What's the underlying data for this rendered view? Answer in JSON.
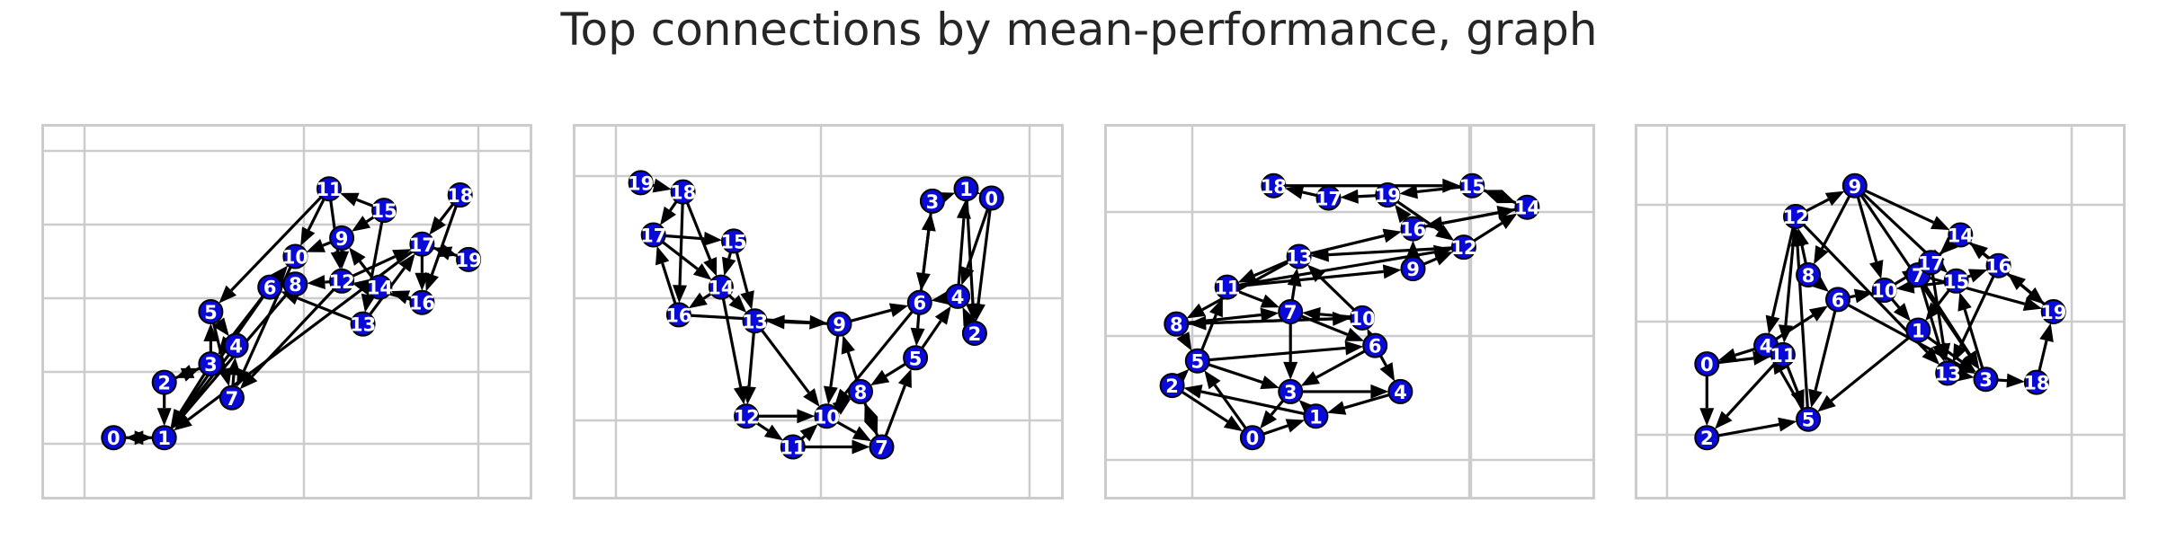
{
  "title": "Top connections by mean-performance, graph",
  "colors": {
    "node_fill": "#0a0ad8",
    "edge": "#000000",
    "label": "#ffffff",
    "grid": "#cccccc"
  },
  "chart_data": [
    {
      "type": "network",
      "nodes": [
        {
          "id": "0",
          "x": 0.09,
          "y": 0.09
        },
        {
          "id": "1",
          "x": 0.21,
          "y": 0.09
        },
        {
          "id": "2",
          "x": 0.21,
          "y": 0.27
        },
        {
          "id": "3",
          "x": 0.32,
          "y": 0.33
        },
        {
          "id": "4",
          "x": 0.38,
          "y": 0.39
        },
        {
          "id": "5",
          "x": 0.32,
          "y": 0.5
        },
        {
          "id": "6",
          "x": 0.46,
          "y": 0.58
        },
        {
          "id": "7",
          "x": 0.37,
          "y": 0.22
        },
        {
          "id": "8",
          "x": 0.52,
          "y": 0.59
        },
        {
          "id": "9",
          "x": 0.63,
          "y": 0.74
        },
        {
          "id": "10",
          "x": 0.52,
          "y": 0.68
        },
        {
          "id": "11",
          "x": 0.6,
          "y": 0.9
        },
        {
          "id": "12",
          "x": 0.63,
          "y": 0.6
        },
        {
          "id": "13",
          "x": 0.68,
          "y": 0.46
        },
        {
          "id": "14",
          "x": 0.72,
          "y": 0.58
        },
        {
          "id": "15",
          "x": 0.73,
          "y": 0.83
        },
        {
          "id": "16",
          "x": 0.82,
          "y": 0.53
        },
        {
          "id": "17",
          "x": 0.82,
          "y": 0.72
        },
        {
          "id": "18",
          "x": 0.91,
          "y": 0.88
        },
        {
          "id": "19",
          "x": 0.93,
          "y": 0.67
        }
      ],
      "edges": [
        [
          "0",
          "1"
        ],
        [
          "1",
          "0"
        ],
        [
          "2",
          "1"
        ],
        [
          "3",
          "2"
        ],
        [
          "4",
          "1"
        ],
        [
          "5",
          "7"
        ],
        [
          "6",
          "3"
        ],
        [
          "7",
          "4"
        ],
        [
          "5",
          "4"
        ],
        [
          "3",
          "5"
        ],
        [
          "2",
          "3"
        ],
        [
          "6",
          "10"
        ],
        [
          "8",
          "6"
        ],
        [
          "11",
          "5"
        ],
        [
          "9",
          "12"
        ],
        [
          "10",
          "7"
        ],
        [
          "12",
          "8"
        ],
        [
          "13",
          "6"
        ],
        [
          "14",
          "12"
        ],
        [
          "15",
          "11"
        ],
        [
          "16",
          "12"
        ],
        [
          "17",
          "19"
        ],
        [
          "18",
          "17"
        ],
        [
          "19",
          "17"
        ],
        [
          "13",
          "17"
        ],
        [
          "9",
          "10"
        ],
        [
          "17",
          "16"
        ],
        [
          "15",
          "13"
        ],
        [
          "11",
          "12"
        ],
        [
          "8",
          "1"
        ],
        [
          "12",
          "7"
        ],
        [
          "6",
          "1"
        ],
        [
          "18",
          "16"
        ],
        [
          "14",
          "9"
        ],
        [
          "17",
          "1"
        ],
        [
          "3",
          "1"
        ],
        [
          "15",
          "9"
        ],
        [
          "16",
          "14"
        ],
        [
          "11",
          "10"
        ],
        [
          "12",
          "17"
        ]
      ]
    },
    {
      "type": "network",
      "nodes": [
        {
          "id": "0",
          "x": 0.91,
          "y": 0.87
        },
        {
          "id": "1",
          "x": 0.85,
          "y": 0.9
        },
        {
          "id": "2",
          "x": 0.87,
          "y": 0.43
        },
        {
          "id": "3",
          "x": 0.77,
          "y": 0.86
        },
        {
          "id": "4",
          "x": 0.83,
          "y": 0.55
        },
        {
          "id": "5",
          "x": 0.73,
          "y": 0.35
        },
        {
          "id": "6",
          "x": 0.74,
          "y": 0.53
        },
        {
          "id": "7",
          "x": 0.65,
          "y": 0.06
        },
        {
          "id": "8",
          "x": 0.6,
          "y": 0.24
        },
        {
          "id": "9",
          "x": 0.55,
          "y": 0.46
        },
        {
          "id": "10",
          "x": 0.52,
          "y": 0.16
        },
        {
          "id": "11",
          "x": 0.44,
          "y": 0.06
        },
        {
          "id": "12",
          "x": 0.33,
          "y": 0.16
        },
        {
          "id": "13",
          "x": 0.35,
          "y": 0.47
        },
        {
          "id": "14",
          "x": 0.27,
          "y": 0.58
        },
        {
          "id": "15",
          "x": 0.3,
          "y": 0.73
        },
        {
          "id": "16",
          "x": 0.17,
          "y": 0.49
        },
        {
          "id": "17",
          "x": 0.11,
          "y": 0.75
        },
        {
          "id": "18",
          "x": 0.18,
          "y": 0.89
        },
        {
          "id": "19",
          "x": 0.08,
          "y": 0.92
        }
      ],
      "edges": [
        [
          "19",
          "18"
        ],
        [
          "18",
          "17"
        ],
        [
          "17",
          "15"
        ],
        [
          "15",
          "14"
        ],
        [
          "14",
          "16"
        ],
        [
          "16",
          "17"
        ],
        [
          "18",
          "16"
        ],
        [
          "15",
          "13"
        ],
        [
          "13",
          "12"
        ],
        [
          "12",
          "11"
        ],
        [
          "11",
          "10"
        ],
        [
          "10",
          "7"
        ],
        [
          "7",
          "8"
        ],
        [
          "8",
          "9"
        ],
        [
          "9",
          "13"
        ],
        [
          "14",
          "13"
        ],
        [
          "16",
          "9"
        ],
        [
          "13",
          "10"
        ],
        [
          "9",
          "10"
        ],
        [
          "9",
          "6"
        ],
        [
          "6",
          "5"
        ],
        [
          "5",
          "4"
        ],
        [
          "4",
          "6"
        ],
        [
          "6",
          "3"
        ],
        [
          "3",
          "1"
        ],
        [
          "1",
          "0"
        ],
        [
          "0",
          "2"
        ],
        [
          "2",
          "4"
        ],
        [
          "4",
          "1"
        ],
        [
          "3",
          "6"
        ],
        [
          "5",
          "8"
        ],
        [
          "8",
          "7"
        ],
        [
          "7",
          "5"
        ],
        [
          "10",
          "8"
        ],
        [
          "12",
          "10"
        ],
        [
          "11",
          "7"
        ],
        [
          "18",
          "14"
        ],
        [
          "17",
          "14"
        ],
        [
          "1",
          "2"
        ],
        [
          "6",
          "10"
        ],
        [
          "14",
          "12"
        ],
        [
          "0",
          "4"
        ]
      ]
    },
    {
      "type": "network",
      "nodes": [
        {
          "id": "0",
          "x": 0.27,
          "y": 0.09
        },
        {
          "id": "1",
          "x": 0.42,
          "y": 0.16
        },
        {
          "id": "2",
          "x": 0.08,
          "y": 0.26
        },
        {
          "id": "3",
          "x": 0.36,
          "y": 0.24
        },
        {
          "id": "4",
          "x": 0.62,
          "y": 0.24
        },
        {
          "id": "5",
          "x": 0.14,
          "y": 0.34
        },
        {
          "id": "6",
          "x": 0.56,
          "y": 0.39
        },
        {
          "id": "7",
          "x": 0.36,
          "y": 0.5
        },
        {
          "id": "8",
          "x": 0.09,
          "y": 0.46
        },
        {
          "id": "9",
          "x": 0.65,
          "y": 0.64
        },
        {
          "id": "10",
          "x": 0.53,
          "y": 0.48
        },
        {
          "id": "11",
          "x": 0.21,
          "y": 0.58
        },
        {
          "id": "12",
          "x": 0.77,
          "y": 0.71
        },
        {
          "id": "13",
          "x": 0.38,
          "y": 0.68
        },
        {
          "id": "14",
          "x": 0.92,
          "y": 0.84
        },
        {
          "id": "15",
          "x": 0.79,
          "y": 0.91
        },
        {
          "id": "16",
          "x": 0.65,
          "y": 0.77
        },
        {
          "id": "17",
          "x": 0.45,
          "y": 0.87
        },
        {
          "id": "18",
          "x": 0.32,
          "y": 0.91
        },
        {
          "id": "19",
          "x": 0.59,
          "y": 0.88
        }
      ],
      "edges": [
        [
          "0",
          "1"
        ],
        [
          "1",
          "3"
        ],
        [
          "3",
          "0"
        ],
        [
          "2",
          "5"
        ],
        [
          "5",
          "3"
        ],
        [
          "3",
          "4"
        ],
        [
          "4",
          "1"
        ],
        [
          "5",
          "6"
        ],
        [
          "6",
          "3"
        ],
        [
          "8",
          "7"
        ],
        [
          "7",
          "6"
        ],
        [
          "6",
          "10"
        ],
        [
          "10",
          "8"
        ],
        [
          "11",
          "7"
        ],
        [
          "7",
          "13"
        ],
        [
          "13",
          "11"
        ],
        [
          "11",
          "9"
        ],
        [
          "9",
          "12"
        ],
        [
          "12",
          "13"
        ],
        [
          "13",
          "16"
        ],
        [
          "16",
          "14"
        ],
        [
          "14",
          "15"
        ],
        [
          "15",
          "19"
        ],
        [
          "19",
          "17"
        ],
        [
          "17",
          "18"
        ],
        [
          "18",
          "15"
        ],
        [
          "15",
          "14"
        ],
        [
          "16",
          "19"
        ],
        [
          "12",
          "14"
        ],
        [
          "13",
          "8"
        ],
        [
          "11",
          "12"
        ],
        [
          "8",
          "10"
        ],
        [
          "2",
          "0"
        ],
        [
          "0",
          "5"
        ],
        [
          "1",
          "2"
        ],
        [
          "6",
          "4"
        ],
        [
          "10",
          "13"
        ],
        [
          "9",
          "16"
        ],
        [
          "5",
          "11"
        ],
        [
          "19",
          "12"
        ],
        [
          "7",
          "3"
        ],
        [
          "14",
          "16"
        ],
        [
          "8",
          "5"
        ],
        [
          "10",
          "7"
        ]
      ]
    },
    {
      "type": "network",
      "nodes": [
        {
          "id": "0",
          "x": 0.09,
          "y": 0.33
        },
        {
          "id": "1",
          "x": 0.59,
          "y": 0.44
        },
        {
          "id": "2",
          "x": 0.09,
          "y": 0.09
        },
        {
          "id": "3",
          "x": 0.75,
          "y": 0.28
        },
        {
          "id": "4",
          "x": 0.23,
          "y": 0.39
        },
        {
          "id": "5",
          "x": 0.33,
          "y": 0.15
        },
        {
          "id": "6",
          "x": 0.4,
          "y": 0.54
        },
        {
          "id": "7",
          "x": 0.59,
          "y": 0.62
        },
        {
          "id": "8",
          "x": 0.33,
          "y": 0.62
        },
        {
          "id": "9",
          "x": 0.44,
          "y": 0.91
        },
        {
          "id": "10",
          "x": 0.51,
          "y": 0.57
        },
        {
          "id": "11",
          "x": 0.27,
          "y": 0.36
        },
        {
          "id": "12",
          "x": 0.3,
          "y": 0.81
        },
        {
          "id": "13",
          "x": 0.66,
          "y": 0.3
        },
        {
          "id": "14",
          "x": 0.69,
          "y": 0.75
        },
        {
          "id": "15",
          "x": 0.68,
          "y": 0.6
        },
        {
          "id": "16",
          "x": 0.78,
          "y": 0.65
        },
        {
          "id": "17",
          "x": 0.62,
          "y": 0.66
        },
        {
          "id": "18",
          "x": 0.87,
          "y": 0.27
        },
        {
          "id": "19",
          "x": 0.91,
          "y": 0.5
        }
      ],
      "edges": [
        [
          "0",
          "2"
        ],
        [
          "2",
          "5"
        ],
        [
          "5",
          "12"
        ],
        [
          "12",
          "9"
        ],
        [
          "9",
          "10"
        ],
        [
          "10",
          "1"
        ],
        [
          "1",
          "3"
        ],
        [
          "3",
          "18"
        ],
        [
          "18",
          "19"
        ],
        [
          "19",
          "16"
        ],
        [
          "16",
          "14"
        ],
        [
          "14",
          "17"
        ],
        [
          "17",
          "13"
        ],
        [
          "13",
          "3"
        ],
        [
          "3",
          "15"
        ],
        [
          "15",
          "16"
        ],
        [
          "16",
          "13"
        ],
        [
          "14",
          "7"
        ],
        [
          "7",
          "13"
        ],
        [
          "1",
          "5"
        ],
        [
          "5",
          "4"
        ],
        [
          "4",
          "6"
        ],
        [
          "6",
          "10"
        ],
        [
          "11",
          "2"
        ],
        [
          "12",
          "11"
        ],
        [
          "11",
          "5"
        ],
        [
          "4",
          "0"
        ],
        [
          "0",
          "11"
        ],
        [
          "8",
          "6"
        ],
        [
          "6",
          "5"
        ],
        [
          "12",
          "4"
        ],
        [
          "8",
          "12"
        ],
        [
          "9",
          "14"
        ],
        [
          "9",
          "15"
        ],
        [
          "10",
          "17"
        ],
        [
          "15",
          "1"
        ],
        [
          "7",
          "19"
        ],
        [
          "14",
          "19"
        ],
        [
          "9",
          "8"
        ],
        [
          "12",
          "13"
        ],
        [
          "9",
          "3"
        ],
        [
          "15",
          "10"
        ],
        [
          "7",
          "3"
        ],
        [
          "6",
          "3"
        ]
      ]
    }
  ]
}
